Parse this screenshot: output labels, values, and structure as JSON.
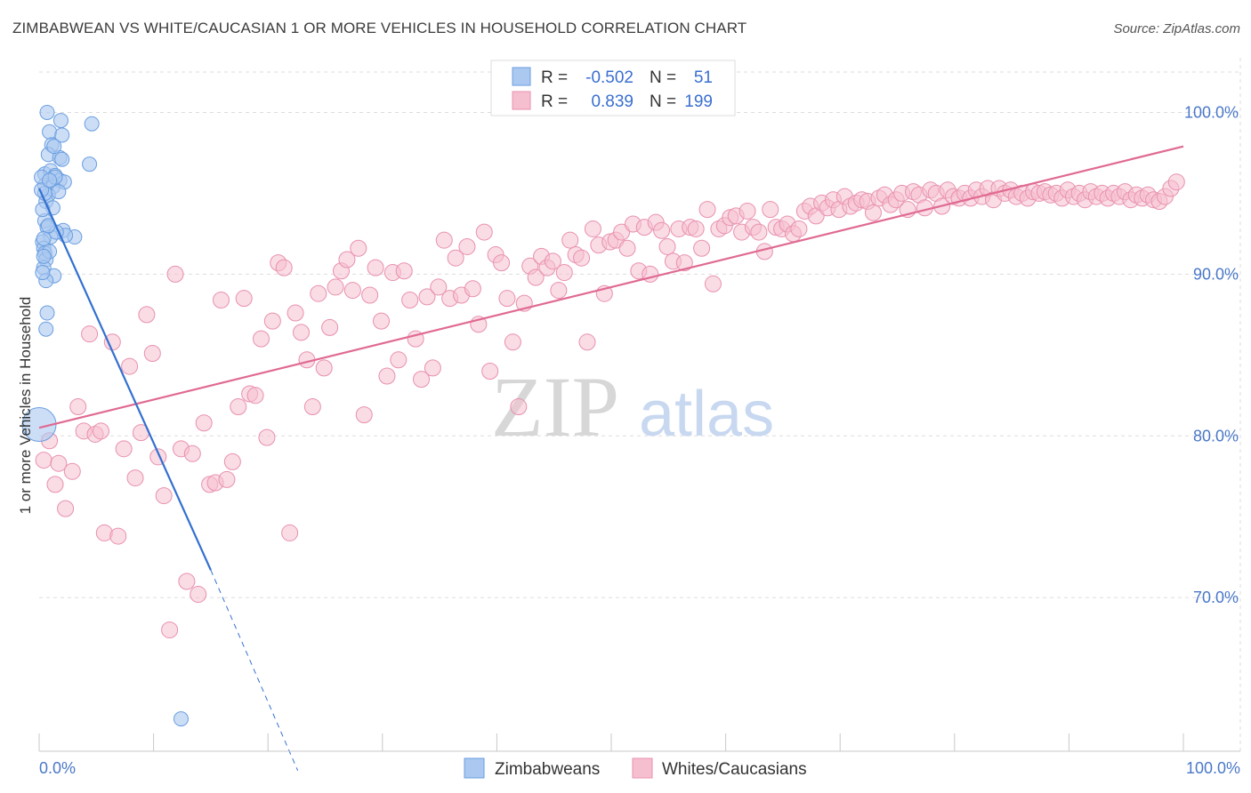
{
  "header": {
    "title": "ZIMBABWEAN VS WHITE/CAUCASIAN 1 OR MORE VEHICLES IN HOUSEHOLD CORRELATION CHART",
    "source": "Source: ZipAtlas.com"
  },
  "watermark": {
    "zip": "ZIP",
    "atlas": "atlas"
  },
  "legend": {
    "rows": [
      {
        "r_label": "R =",
        "r_value": "-0.502",
        "n_label": "N =",
        "n_value": "51"
      },
      {
        "r_label": "R =",
        "r_value": "0.839",
        "n_label": "N =",
        "n_value": "199"
      }
    ]
  },
  "bottom_legend": {
    "items": [
      "Zimbabweans",
      "Whites/Caucasians"
    ]
  },
  "colors": {
    "blue_fill": "#aac8f0",
    "blue_stroke": "#6a9ee0",
    "blue_line": "#3370d0",
    "pink_fill": "#f6bfd0",
    "pink_stroke": "#e890ae",
    "pink_line": "#e06a92",
    "tick_text": "#4a78c8",
    "grid": "#dddddd"
  },
  "chart_data": {
    "type": "scatter",
    "title": "ZIMBABWEAN VS WHITE/CAUCASIAN 1 OR MORE VEHICLES IN HOUSEHOLD CORRELATION CHART",
    "xlabel": "",
    "ylabel": "1 or more Vehicles in Household",
    "xlim": [
      0,
      100
    ],
    "ylim": [
      60.5,
      102.5
    ],
    "x_tick_labels": [
      "0.0%",
      "100.0%"
    ],
    "y_ticks": [
      70,
      80,
      90,
      100
    ],
    "y_tick_labels": [
      "70.0%",
      "80.0%",
      "90.0%",
      "100.0%"
    ],
    "grid": true,
    "legend_position": "top-center",
    "series": [
      {
        "name": "Zimbabweans",
        "R": -0.502,
        "N": 51,
        "trend": {
          "x": [
            0,
            15
          ],
          "y": [
            95.3,
            71.7
          ],
          "dashed_extension_to": [
            22.6,
            59.3
          ]
        },
        "points": [
          [
            0.7,
            100.0
          ],
          [
            0.9,
            98.8
          ],
          [
            1.1,
            98.0
          ],
          [
            1.9,
            99.5
          ],
          [
            2.0,
            98.6
          ],
          [
            4.6,
            99.3
          ],
          [
            0.8,
            97.4
          ],
          [
            1.8,
            97.2
          ],
          [
            2.0,
            97.1
          ],
          [
            4.4,
            96.8
          ],
          [
            1.3,
            97.9
          ],
          [
            0.5,
            96.2
          ],
          [
            1.0,
            96.4
          ],
          [
            1.4,
            96.1
          ],
          [
            1.8,
            95.8
          ],
          [
            2.2,
            95.7
          ],
          [
            0.5,
            95.5
          ],
          [
            1.2,
            95.4
          ],
          [
            0.8,
            94.9
          ],
          [
            0.6,
            94.5
          ],
          [
            1.2,
            94.1
          ],
          [
            0.5,
            93.3
          ],
          [
            0.7,
            92.9
          ],
          [
            1.0,
            92.3
          ],
          [
            2.1,
            92.7
          ],
          [
            3.1,
            92.3
          ],
          [
            2.3,
            92.4
          ],
          [
            0.3,
            92.0
          ],
          [
            0.4,
            91.6
          ],
          [
            0.5,
            91.3
          ],
          [
            0.6,
            90.9
          ],
          [
            0.4,
            90.4
          ],
          [
            1.3,
            89.9
          ],
          [
            0.6,
            89.6
          ],
          [
            0.7,
            87.6
          ],
          [
            0.6,
            86.6
          ],
          [
            0.4,
            92.2
          ],
          [
            0.9,
            91.4
          ],
          [
            0.3,
            90.1
          ],
          [
            0.5,
            95.0
          ],
          [
            1.4,
            96.0
          ],
          [
            0.2,
            96.0
          ],
          [
            0.3,
            94.0
          ],
          [
            1.5,
            92.6
          ],
          [
            0.8,
            93.0
          ],
          [
            0.4,
            91.1
          ],
          [
            0.2,
            95.2
          ],
          [
            1.7,
            95.1
          ],
          [
            0.9,
            95.8
          ],
          [
            0.0,
            80.7
          ],
          [
            12.4,
            62.5
          ]
        ],
        "large_point": [
          0.0,
          80.7
        ]
      },
      {
        "name": "Whites/Caucasians",
        "R": 0.839,
        "N": 199,
        "trend": {
          "x": [
            0,
            100
          ],
          "y": [
            80.5,
            97.9
          ]
        },
        "points": [
          [
            0.4,
            78.5
          ],
          [
            0.9,
            79.7
          ],
          [
            1.4,
            77.0
          ],
          [
            1.7,
            78.3
          ],
          [
            2.3,
            75.5
          ],
          [
            2.9,
            77.8
          ],
          [
            3.4,
            81.8
          ],
          [
            3.9,
            80.3
          ],
          [
            4.4,
            86.3
          ],
          [
            4.9,
            80.1
          ],
          [
            5.4,
            80.3
          ],
          [
            5.7,
            74.0
          ],
          [
            6.4,
            85.8
          ],
          [
            6.9,
            73.8
          ],
          [
            7.4,
            79.2
          ],
          [
            7.9,
            84.3
          ],
          [
            8.4,
            77.4
          ],
          [
            8.9,
            80.2
          ],
          [
            9.4,
            87.5
          ],
          [
            9.9,
            85.1
          ],
          [
            10.4,
            78.7
          ],
          [
            10.9,
            76.3
          ],
          [
            11.4,
            68.0
          ],
          [
            11.9,
            90.0
          ],
          [
            12.4,
            79.2
          ],
          [
            12.9,
            71.0
          ],
          [
            13.4,
            78.9
          ],
          [
            13.9,
            70.2
          ],
          [
            14.4,
            80.8
          ],
          [
            14.9,
            77.0
          ],
          [
            15.4,
            77.1
          ],
          [
            15.9,
            88.4
          ],
          [
            16.4,
            77.3
          ],
          [
            16.9,
            78.4
          ],
          [
            17.4,
            81.8
          ],
          [
            17.9,
            88.5
          ],
          [
            18.4,
            82.6
          ],
          [
            18.9,
            82.5
          ],
          [
            19.4,
            86.0
          ],
          [
            19.9,
            79.9
          ],
          [
            20.4,
            87.1
          ],
          [
            20.9,
            90.7
          ],
          [
            21.4,
            90.4
          ],
          [
            21.9,
            74.0
          ],
          [
            22.4,
            87.6
          ],
          [
            22.9,
            86.4
          ],
          [
            23.4,
            84.7
          ],
          [
            23.9,
            81.8
          ],
          [
            24.4,
            88.8
          ],
          [
            24.9,
            84.2
          ],
          [
            25.4,
            86.7
          ],
          [
            25.9,
            89.2
          ],
          [
            26.4,
            90.2
          ],
          [
            26.9,
            90.9
          ],
          [
            27.4,
            89.0
          ],
          [
            27.9,
            91.6
          ],
          [
            28.4,
            81.3
          ],
          [
            28.9,
            88.7
          ],
          [
            29.4,
            90.4
          ],
          [
            29.9,
            87.1
          ],
          [
            30.4,
            83.7
          ],
          [
            30.9,
            90.1
          ],
          [
            31.4,
            84.7
          ],
          [
            31.9,
            90.2
          ],
          [
            32.4,
            88.4
          ],
          [
            32.9,
            86.0
          ],
          [
            33.4,
            83.5
          ],
          [
            33.9,
            88.6
          ],
          [
            34.4,
            84.2
          ],
          [
            34.9,
            89.2
          ],
          [
            35.4,
            92.1
          ],
          [
            35.9,
            88.5
          ],
          [
            36.4,
            91.0
          ],
          [
            36.9,
            88.7
          ],
          [
            37.4,
            91.7
          ],
          [
            37.9,
            89.1
          ],
          [
            38.4,
            86.9
          ],
          [
            38.9,
            92.6
          ],
          [
            39.4,
            84.0
          ],
          [
            39.9,
            91.2
          ],
          [
            40.4,
            90.7
          ],
          [
            40.9,
            88.5
          ],
          [
            41.4,
            85.8
          ],
          [
            41.9,
            81.8
          ],
          [
            42.4,
            88.2
          ],
          [
            42.9,
            90.5
          ],
          [
            43.4,
            89.8
          ],
          [
            43.9,
            91.1
          ],
          [
            44.4,
            90.4
          ],
          [
            44.9,
            90.8
          ],
          [
            45.4,
            89.0
          ],
          [
            45.9,
            90.1
          ],
          [
            46.4,
            92.1
          ],
          [
            46.9,
            91.2
          ],
          [
            47.4,
            91.0
          ],
          [
            47.9,
            85.8
          ],
          [
            48.4,
            92.8
          ],
          [
            48.9,
            91.8
          ],
          [
            49.4,
            88.8
          ],
          [
            49.9,
            92.0
          ],
          [
            50.4,
            92.1
          ],
          [
            50.9,
            92.6
          ],
          [
            51.4,
            91.6
          ],
          [
            51.9,
            93.1
          ],
          [
            52.4,
            90.2
          ],
          [
            52.9,
            92.9
          ],
          [
            53.4,
            90.0
          ],
          [
            53.9,
            93.2
          ],
          [
            54.4,
            92.7
          ],
          [
            54.9,
            91.7
          ],
          [
            55.4,
            90.8
          ],
          [
            55.9,
            92.8
          ],
          [
            56.4,
            90.7
          ],
          [
            56.9,
            92.9
          ],
          [
            57.4,
            92.8
          ],
          [
            57.9,
            91.6
          ],
          [
            58.4,
            94.0
          ],
          [
            58.9,
            89.4
          ],
          [
            59.4,
            92.8
          ],
          [
            59.9,
            93.0
          ],
          [
            60.4,
            93.5
          ],
          [
            60.9,
            93.6
          ],
          [
            61.4,
            92.6
          ],
          [
            61.9,
            93.9
          ],
          [
            62.4,
            92.9
          ],
          [
            62.9,
            92.6
          ],
          [
            63.4,
            91.4
          ],
          [
            63.9,
            94.0
          ],
          [
            64.4,
            92.9
          ],
          [
            64.9,
            92.8
          ],
          [
            65.4,
            93.1
          ],
          [
            65.9,
            92.5
          ],
          [
            66.4,
            92.8
          ],
          [
            66.9,
            93.9
          ],
          [
            67.4,
            94.2
          ],
          [
            67.9,
            93.6
          ],
          [
            68.4,
            94.4
          ],
          [
            68.9,
            94.1
          ],
          [
            69.4,
            94.6
          ],
          [
            69.9,
            94.0
          ],
          [
            70.4,
            94.8
          ],
          [
            70.9,
            94.2
          ],
          [
            71.4,
            94.4
          ],
          [
            71.9,
            94.6
          ],
          [
            72.4,
            94.5
          ],
          [
            72.9,
            93.8
          ],
          [
            73.4,
            94.7
          ],
          [
            73.9,
            94.9
          ],
          [
            74.4,
            94.3
          ],
          [
            74.9,
            94.6
          ],
          [
            75.4,
            95.0
          ],
          [
            75.9,
            94.0
          ],
          [
            76.4,
            95.1
          ],
          [
            76.9,
            94.9
          ],
          [
            77.4,
            94.1
          ],
          [
            77.9,
            95.2
          ],
          [
            78.4,
            95.0
          ],
          [
            78.9,
            94.2
          ],
          [
            79.4,
            95.2
          ],
          [
            79.9,
            94.8
          ],
          [
            80.4,
            94.7
          ],
          [
            80.9,
            95.0
          ],
          [
            81.4,
            94.7
          ],
          [
            81.9,
            95.2
          ],
          [
            82.4,
            94.8
          ],
          [
            82.9,
            95.3
          ],
          [
            83.4,
            94.6
          ],
          [
            83.9,
            95.3
          ],
          [
            84.4,
            95.0
          ],
          [
            84.9,
            95.2
          ],
          [
            85.4,
            94.8
          ],
          [
            85.9,
            95.0
          ],
          [
            86.4,
            94.7
          ],
          [
            86.9,
            95.1
          ],
          [
            87.4,
            95.0
          ],
          [
            87.9,
            95.1
          ],
          [
            88.4,
            94.9
          ],
          [
            88.9,
            95.0
          ],
          [
            89.4,
            94.7
          ],
          [
            89.9,
            95.2
          ],
          [
            90.4,
            94.8
          ],
          [
            90.9,
            95.0
          ],
          [
            91.4,
            94.6
          ],
          [
            91.9,
            95.1
          ],
          [
            92.4,
            94.8
          ],
          [
            92.9,
            95.0
          ],
          [
            93.4,
            94.7
          ],
          [
            93.9,
            95.0
          ],
          [
            94.4,
            94.8
          ],
          [
            94.9,
            95.1
          ],
          [
            95.4,
            94.6
          ],
          [
            95.9,
            94.9
          ],
          [
            96.4,
            94.7
          ],
          [
            96.9,
            94.9
          ],
          [
            97.4,
            94.6
          ],
          [
            97.9,
            94.5
          ],
          [
            98.4,
            94.8
          ],
          [
            98.9,
            95.3
          ],
          [
            99.4,
            95.7
          ]
        ]
      }
    ]
  }
}
